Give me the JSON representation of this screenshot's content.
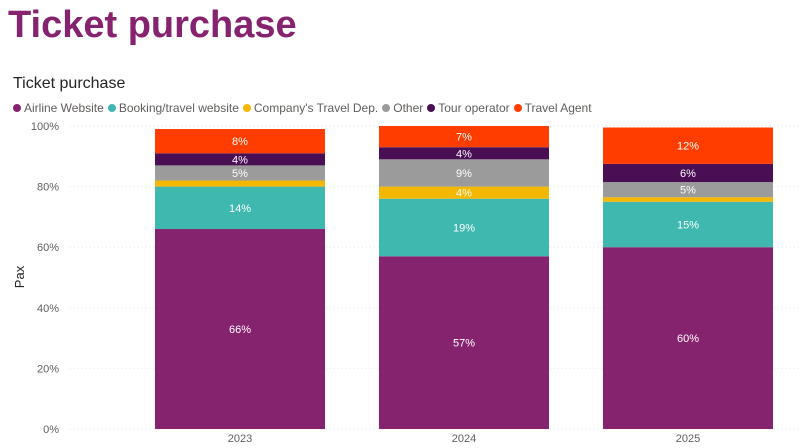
{
  "page_title": "Ticket purchase",
  "chart_data": {
    "type": "bar",
    "stacked": true,
    "title": "Ticket purchase",
    "xlabel": "",
    "ylabel": "Pax",
    "ylim": [
      0,
      100
    ],
    "yticks": [
      "0%",
      "20%",
      "40%",
      "60%",
      "80%",
      "100%"
    ],
    "categories": [
      "2023",
      "2024",
      "2025"
    ],
    "series": [
      {
        "name": "Airline Website",
        "color": "#86236F",
        "values": [
          66,
          57,
          60
        ],
        "labels": [
          "66%",
          "57%",
          "60%"
        ]
      },
      {
        "name": "Booking/travel website",
        "color": "#3FB8AF",
        "values": [
          14,
          19,
          15
        ],
        "labels": [
          "14%",
          "19%",
          "15%"
        ]
      },
      {
        "name": "Company's Travel Dep.",
        "color": "#F5B800",
        "values": [
          2,
          4,
          1.5
        ],
        "labels": [
          "",
          "4%",
          ""
        ]
      },
      {
        "name": "Other",
        "color": "#9B9B9B",
        "values": [
          5,
          9,
          5
        ],
        "labels": [
          "5%",
          "9%",
          "5%"
        ]
      },
      {
        "name": "Tour operator",
        "color": "#4A0E55",
        "values": [
          4,
          4,
          6
        ],
        "labels": [
          "4%",
          "4%",
          "6%"
        ]
      },
      {
        "name": "Travel Agent",
        "color": "#FF3D00",
        "values": [
          8,
          7,
          12
        ],
        "labels": [
          "8%",
          "7%",
          "12%"
        ]
      }
    ]
  }
}
